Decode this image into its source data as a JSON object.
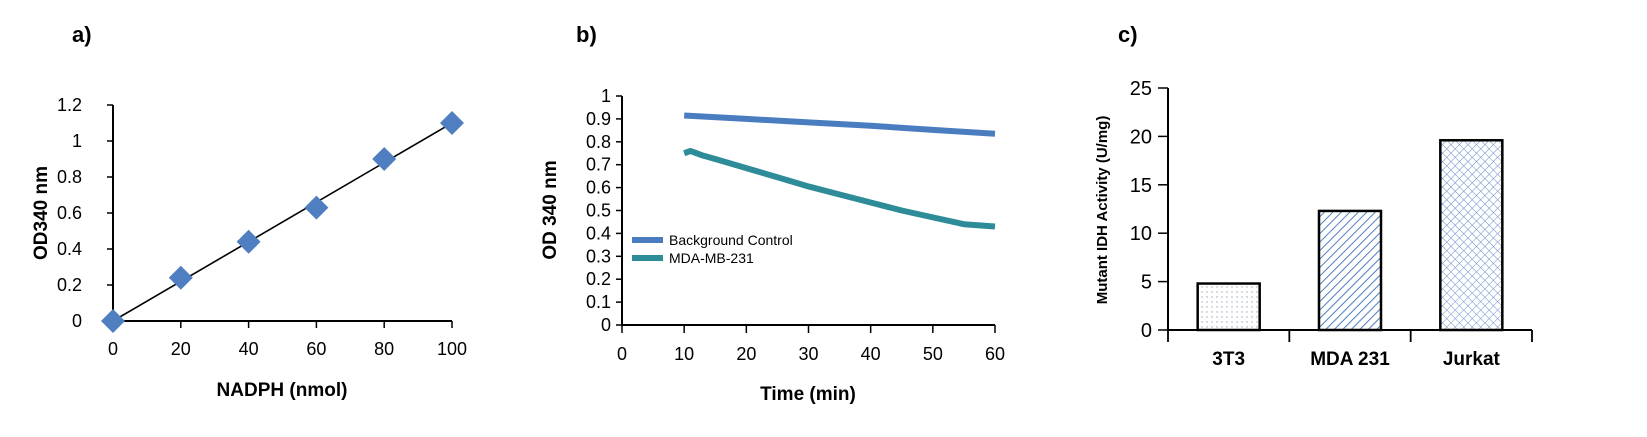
{
  "chart_data": [
    {
      "type": "scatter",
      "panel_label": "a)",
      "xlabel": "NADPH (nmol)",
      "ylabel": "OD340 nm",
      "xlim": [
        0,
        100
      ],
      "ylim": [
        0,
        1.2
      ],
      "xticks": [
        0,
        20,
        40,
        60,
        80,
        100
      ],
      "yticks": [
        "0",
        "0.2",
        "0.4",
        "0.6",
        "0.8",
        "1",
        "1.2"
      ],
      "x": [
        0,
        20,
        40,
        60,
        80,
        100
      ],
      "y": [
        0.0,
        0.24,
        0.44,
        0.63,
        0.9,
        1.1
      ],
      "trendline": {
        "x": [
          0,
          100
        ],
        "y": [
          0.0,
          1.1
        ]
      },
      "marker": "diamond",
      "color": "#4f7fc1",
      "grid": false
    },
    {
      "type": "line",
      "panel_label": "b)",
      "xlabel": "Time (min)",
      "ylabel": "OD 340 nm",
      "xlim": [
        0,
        60
      ],
      "ylim": [
        0,
        1
      ],
      "xticks": [
        0,
        10,
        20,
        30,
        40,
        50,
        60
      ],
      "yticks": [
        "0",
        "0.1",
        "0.2",
        "0.3",
        "0.4",
        "0.5",
        "0.6",
        "0.7",
        "0.8",
        "0.9",
        "1"
      ],
      "legend_position": "middle-left",
      "grid": false,
      "series": [
        {
          "name": "Background Control",
          "color": "#4a7cc0",
          "x": [
            10,
            20,
            30,
            40,
            50,
            60
          ],
          "y": [
            0.915,
            0.9,
            0.885,
            0.87,
            0.852,
            0.835
          ]
        },
        {
          "name": "MDA-MB-231",
          "color": "#2e8b98",
          "x": [
            10,
            11,
            12,
            13,
            15,
            20,
            25,
            30,
            35,
            40,
            45,
            50,
            55,
            60
          ],
          "y": [
            0.75,
            0.76,
            0.75,
            0.74,
            0.725,
            0.685,
            0.645,
            0.605,
            0.57,
            0.535,
            0.5,
            0.47,
            0.44,
            0.43
          ]
        }
      ]
    },
    {
      "type": "bar",
      "panel_label": "c)",
      "xlabel": "",
      "ylabel": "Mutant IDH Activity (U/mg)",
      "ylim": [
        0,
        25
      ],
      "yticks": [
        "0",
        "5",
        "10",
        "15",
        "20",
        "25"
      ],
      "categories": [
        "3T3",
        "MDA 231",
        "Jurkat"
      ],
      "values": [
        4.8,
        12.3,
        19.6
      ],
      "patterns": [
        "dots",
        "diagonal-lines",
        "crosshatch"
      ],
      "grid": false
    }
  ]
}
